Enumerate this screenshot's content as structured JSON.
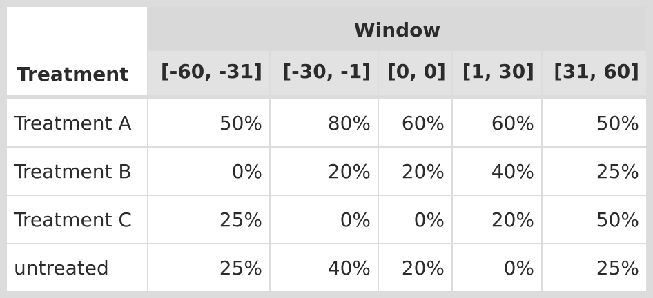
{
  "table": {
    "group_header": "Window",
    "row_header_label": "Treatment",
    "columns": [
      "[-60, -31]",
      "[-30, -1]",
      "[0, 0]",
      "[1, 30]",
      "[31, 60]"
    ],
    "rows": [
      {
        "name": "Treatment A",
        "values": [
          "50%",
          "80%",
          "60%",
          "60%",
          "50%"
        ]
      },
      {
        "name": "Treatment B",
        "values": [
          "0%",
          "20%",
          "20%",
          "40%",
          "25%"
        ]
      },
      {
        "name": "Treatment C",
        "values": [
          "25%",
          "0%",
          "0%",
          "20%",
          "50%"
        ]
      },
      {
        "name": "untreated",
        "values": [
          "25%",
          "40%",
          "20%",
          "0%",
          "25%"
        ]
      }
    ]
  }
}
